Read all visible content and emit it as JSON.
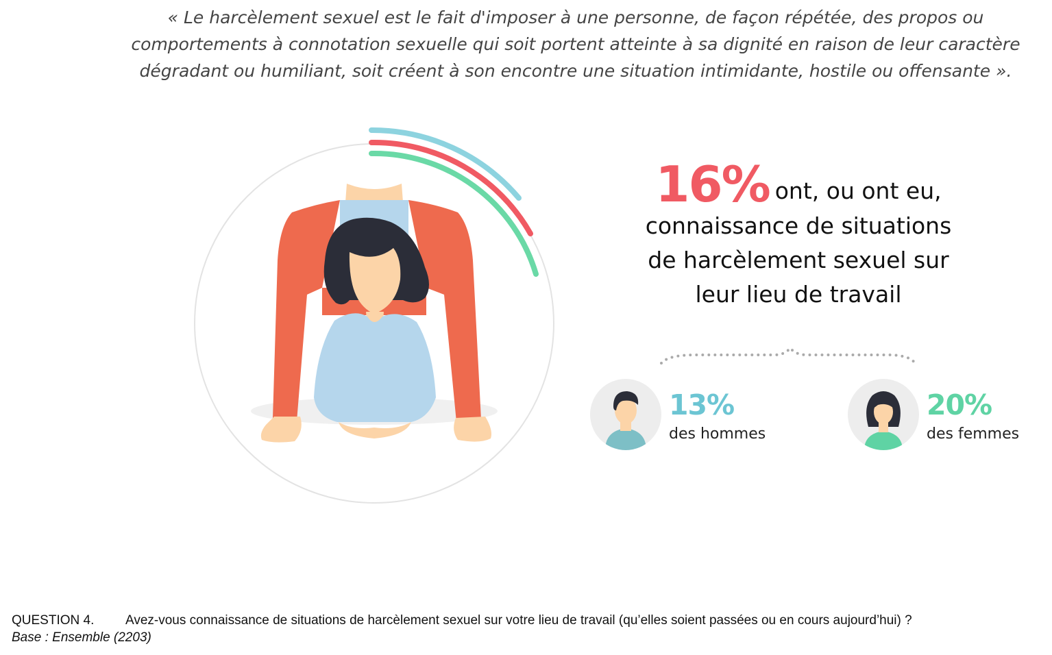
{
  "quote": "« Le harcèlement sexuel est le fait d'imposer à une personne, de façon répétée, des propos ou comportements à connotation sexuelle qui soit portent atteinte à sa dignité en raison de leur caractère dégradant ou humiliant, soit créent à son encontre une situation intimidante, hostile ou offensante ».",
  "headline": {
    "percent": "16%",
    "text_part1": "ont, ou ont eu,",
    "line2": "connaissance de situations",
    "line3": "de harcèlement sexuel sur",
    "line4": "leur lieu de travail"
  },
  "stats": {
    "men": {
      "value": "13%",
      "label": "des hommes",
      "color": "#6cc5d3",
      "icon": "man-avatar-icon"
    },
    "women": {
      "value": "20%",
      "label": "des femmes",
      "color": "#5fd3a4",
      "icon": "woman-avatar-icon"
    }
  },
  "footer": {
    "question_number": "QUESTION 4.",
    "question_text": "Avez-vous connaissance de situations de harcèlement sexuel sur votre lieu de travail (qu’elles soient passées ou en cours aujourd’hui) ?",
    "base": "Base : Ensemble (2203)"
  },
  "colors": {
    "arc_blue": "#8dd3df",
    "arc_red": "#f05a63",
    "arc_green": "#6ad9a6",
    "headline_percent": "#f05a63",
    "man_jacket": "#ee6a4e",
    "woman_top": "#b5d6ec",
    "hair": "#2b2d38",
    "skin": "#fcd4a8"
  }
}
